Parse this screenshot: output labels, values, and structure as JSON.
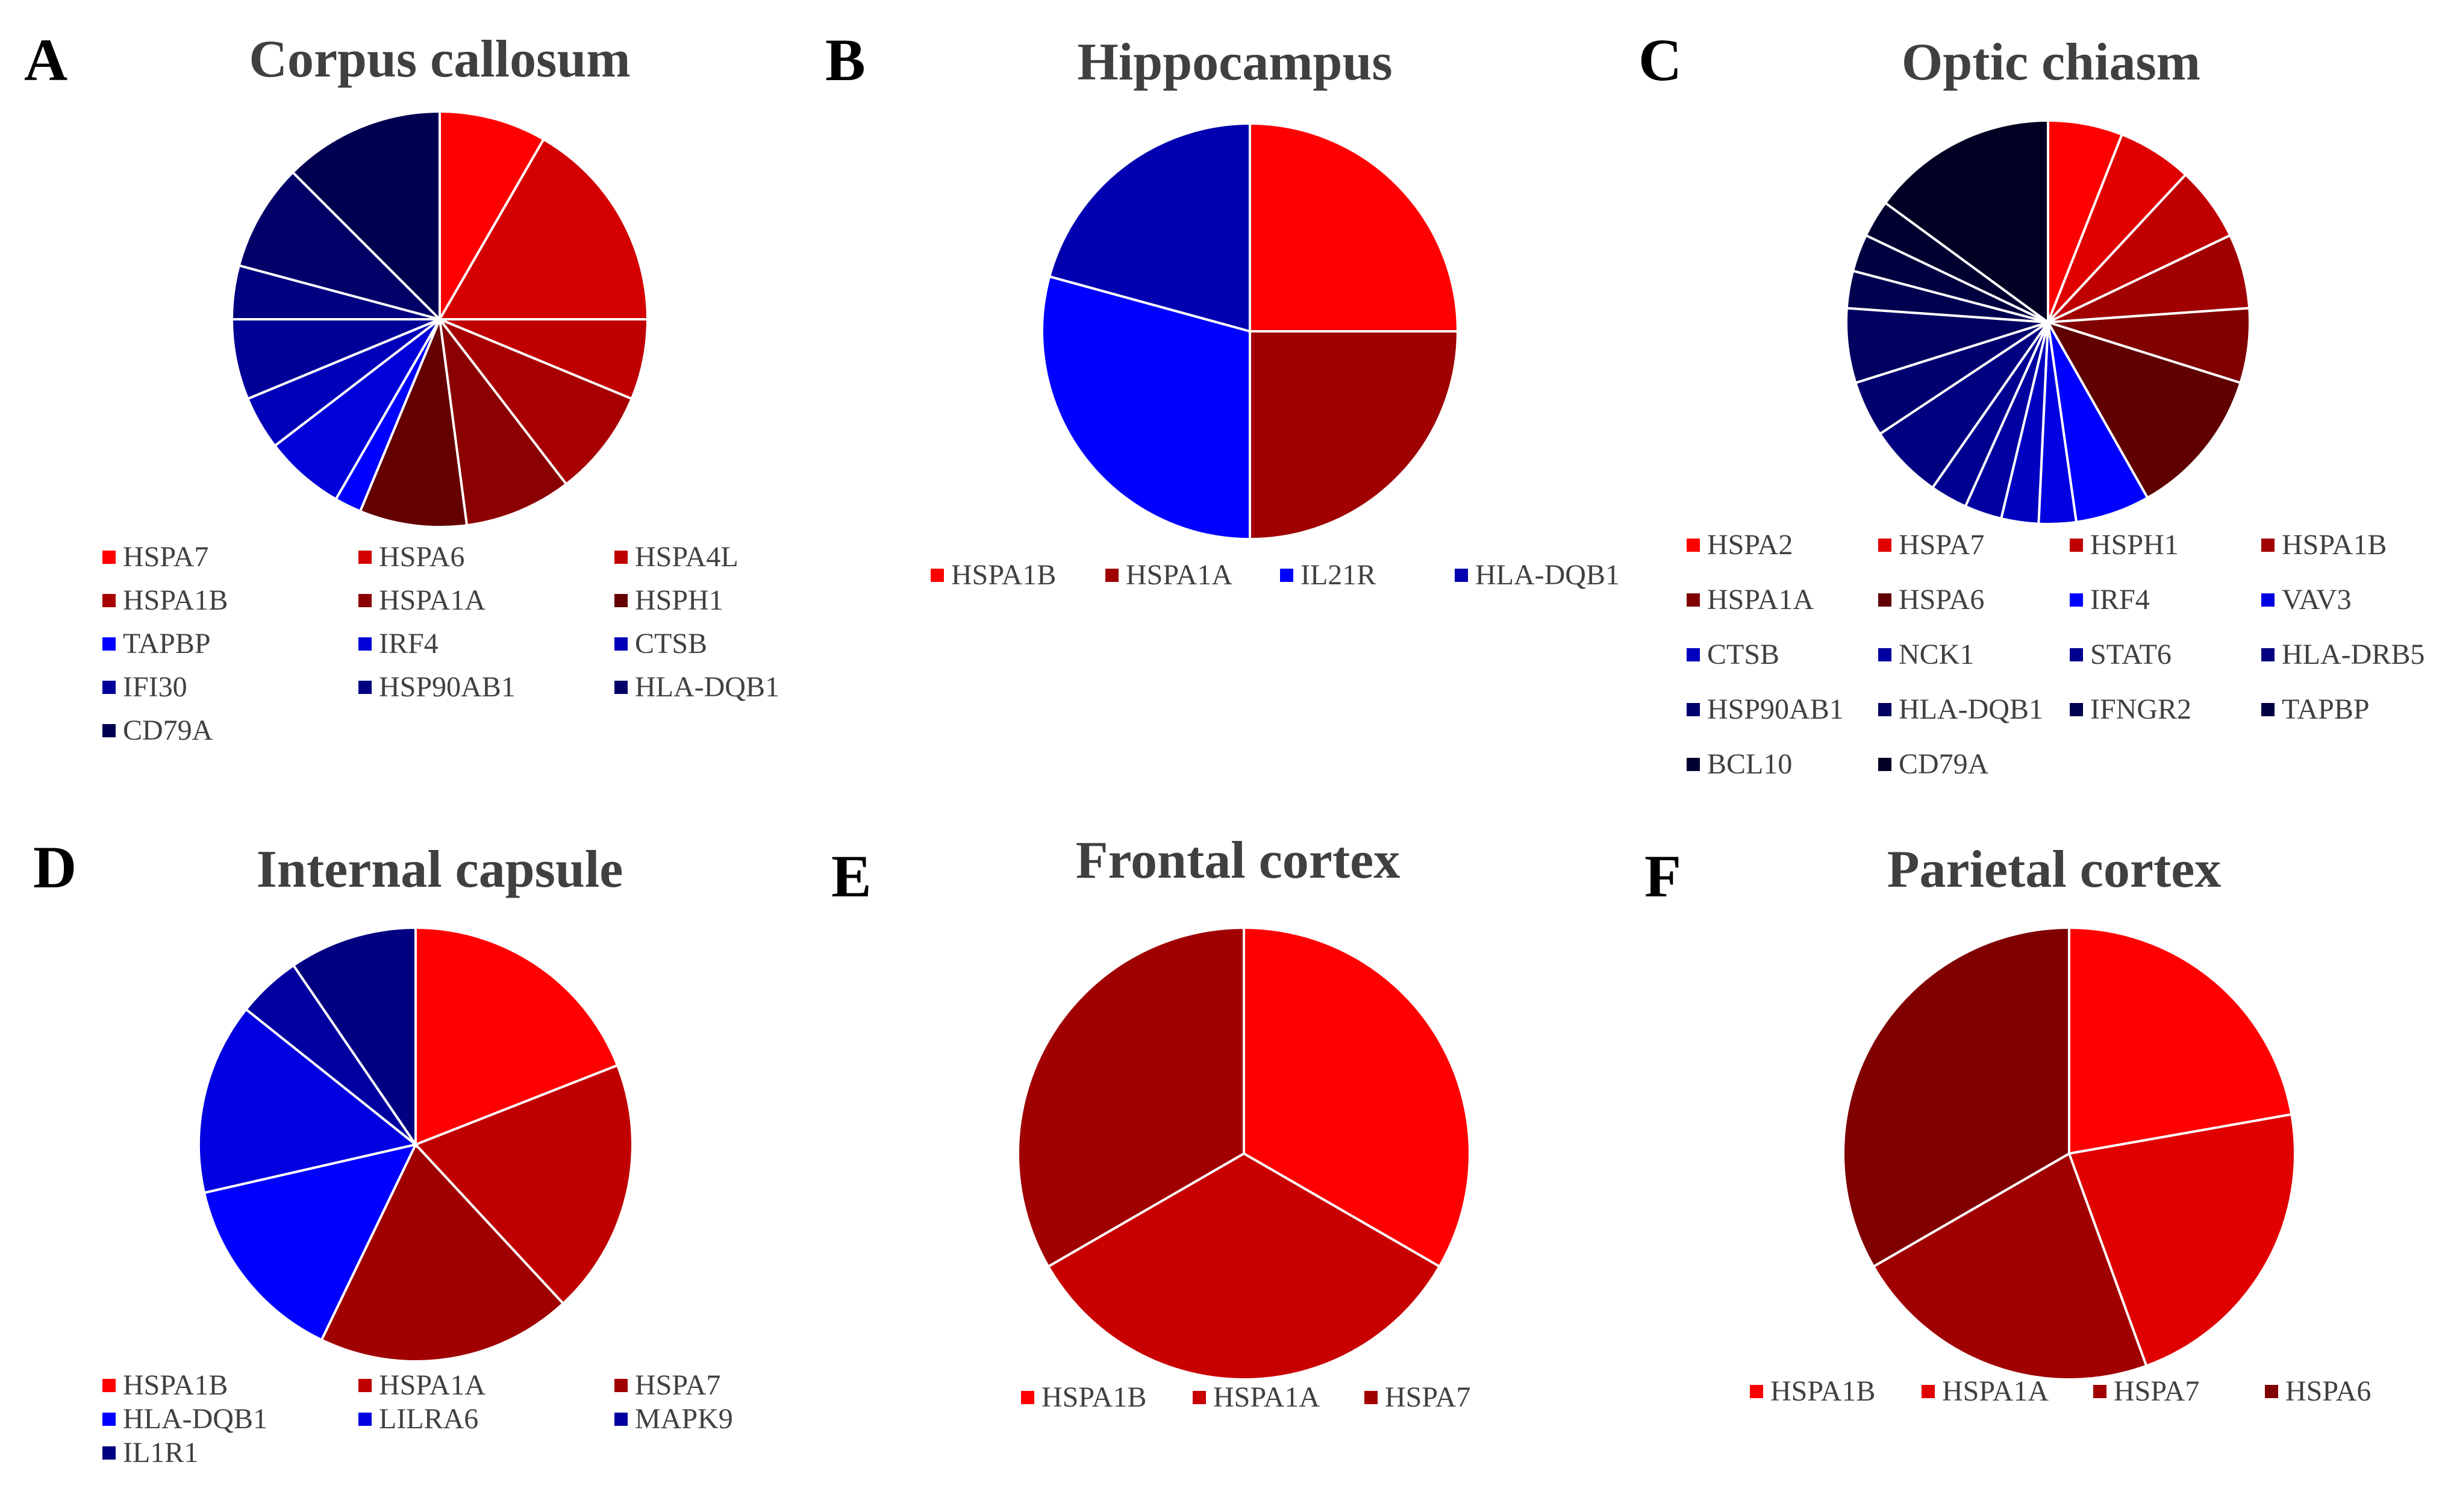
{
  "chart_data": [
    {
      "type": "pie",
      "letter": "A",
      "title": "Corpus callosum",
      "legend_columns": 3,
      "slices": [
        {
          "label": "HSPA7",
          "value": 1,
          "color": "#FF0000"
        },
        {
          "label": "HSPA6",
          "value": 2,
          "color": "#D40000"
        },
        {
          "label": "HSPA4L",
          "value": 0.75,
          "color": "#C00000"
        },
        {
          "label": "HSPA1B",
          "value": 1,
          "color": "#A80000"
        },
        {
          "label": "HSPA1A",
          "value": 1,
          "color": "#8B0000"
        },
        {
          "label": "HSPH1",
          "value": 1,
          "color": "#640000"
        },
        {
          "label": "TAPBP",
          "value": 0.25,
          "color": "#0000FF"
        },
        {
          "label": "IRF4",
          "value": 0.75,
          "color": "#0000D8"
        },
        {
          "label": "CTSB",
          "value": 0.5,
          "color": "#0000B8"
        },
        {
          "label": "IFI30",
          "value": 0.75,
          "color": "#000098"
        },
        {
          "label": "HSP90AB1",
          "value": 0.5,
          "color": "#000080"
        },
        {
          "label": "HLA-DQB1",
          "value": 1,
          "color": "#000068"
        },
        {
          "label": "CD79A",
          "value": 1.5,
          "color": "#000050"
        }
      ]
    },
    {
      "type": "pie",
      "letter": "B",
      "title": "Hippocampus",
      "legend_columns": 4,
      "slices": [
        {
          "label": "HSPA1B",
          "value": 1,
          "color": "#FF0000"
        },
        {
          "label": "HSPA1A",
          "value": 1,
          "color": "#A00000"
        },
        {
          "label": "IL21R",
          "value": 1.17,
          "color": "#0000FF"
        },
        {
          "label": "HLA-DQB1",
          "value": 0.83,
          "color": "#0000B0"
        }
      ]
    },
    {
      "type": "pie",
      "letter": "C",
      "title": "Optic chiasm",
      "legend_columns": 4,
      "slices": [
        {
          "label": "HSPA2",
          "value": 1,
          "color": "#FF0000"
        },
        {
          "label": "HSPA7",
          "value": 1,
          "color": "#E00000"
        },
        {
          "label": "HSPH1",
          "value": 1,
          "color": "#C00000"
        },
        {
          "label": "HSPA1B",
          "value": 1,
          "color": "#A00000"
        },
        {
          "label": "HSPA1A",
          "value": 1,
          "color": "#800000"
        },
        {
          "label": "HSPA6",
          "value": 2,
          "color": "#600000"
        },
        {
          "label": "IRF4",
          "value": 1,
          "color": "#0000FF"
        },
        {
          "label": "VAV3",
          "value": 0.5,
          "color": "#0000E0"
        },
        {
          "label": "CTSB",
          "value": 0.5,
          "color": "#0000C0"
        },
        {
          "label": "NCK1",
          "value": 0.5,
          "color": "#0000A0"
        },
        {
          "label": "STAT6",
          "value": 0.5,
          "color": "#000090"
        },
        {
          "label": "HLA-DRB5",
          "value": 1,
          "color": "#000080"
        },
        {
          "label": "HSP90AB1",
          "value": 0.75,
          "color": "#000070"
        },
        {
          "label": "HLA-DQB1",
          "value": 1,
          "color": "#000060"
        },
        {
          "label": "IFNGR2",
          "value": 0.5,
          "color": "#000050"
        },
        {
          "label": "TAPBP",
          "value": 0.5,
          "color": "#000040"
        },
        {
          "label": "BCL10",
          "value": 0.5,
          "color": "#000030"
        },
        {
          "label": "CD79A",
          "value": 2.5,
          "color": "#000022"
        }
      ]
    },
    {
      "type": "pie",
      "letter": "D",
      "title": "Internal capsule",
      "legend_columns": 3,
      "slices": [
        {
          "label": "HSPA1B",
          "value": 1,
          "color": "#FF0000"
        },
        {
          "label": "HSPA1A",
          "value": 1,
          "color": "#C00000"
        },
        {
          "label": "HSPA7",
          "value": 1,
          "color": "#A00000"
        },
        {
          "label": "HLA-DQB1",
          "value": 0.75,
          "color": "#0000FF"
        },
        {
          "label": "LILRA6",
          "value": 0.75,
          "color": "#0000E0"
        },
        {
          "label": "MAPK9",
          "value": 0.25,
          "color": "#0000A0"
        },
        {
          "label": "IL1R1",
          "value": 0.5,
          "color": "#000080"
        }
      ]
    },
    {
      "type": "pie",
      "letter": "E",
      "title": "Frontal cortex",
      "legend_columns": 3,
      "slices": [
        {
          "label": "HSPA1B",
          "value": 1,
          "color": "#FF0000"
        },
        {
          "label": "HSPA1A",
          "value": 1,
          "color": "#C80000"
        },
        {
          "label": "HSPA7",
          "value": 1,
          "color": "#A00000"
        }
      ]
    },
    {
      "type": "pie",
      "letter": "F",
      "title": "Parietal cortex",
      "legend_columns": 4,
      "slices": [
        {
          "label": "HSPA1B",
          "value": 1,
          "color": "#FF0000"
        },
        {
          "label": "HSPA1A",
          "value": 1,
          "color": "#E00000"
        },
        {
          "label": "HSPA7",
          "value": 1,
          "color": "#A00000"
        },
        {
          "label": "HSPA6",
          "value": 1.5,
          "color": "#800000"
        }
      ]
    }
  ]
}
